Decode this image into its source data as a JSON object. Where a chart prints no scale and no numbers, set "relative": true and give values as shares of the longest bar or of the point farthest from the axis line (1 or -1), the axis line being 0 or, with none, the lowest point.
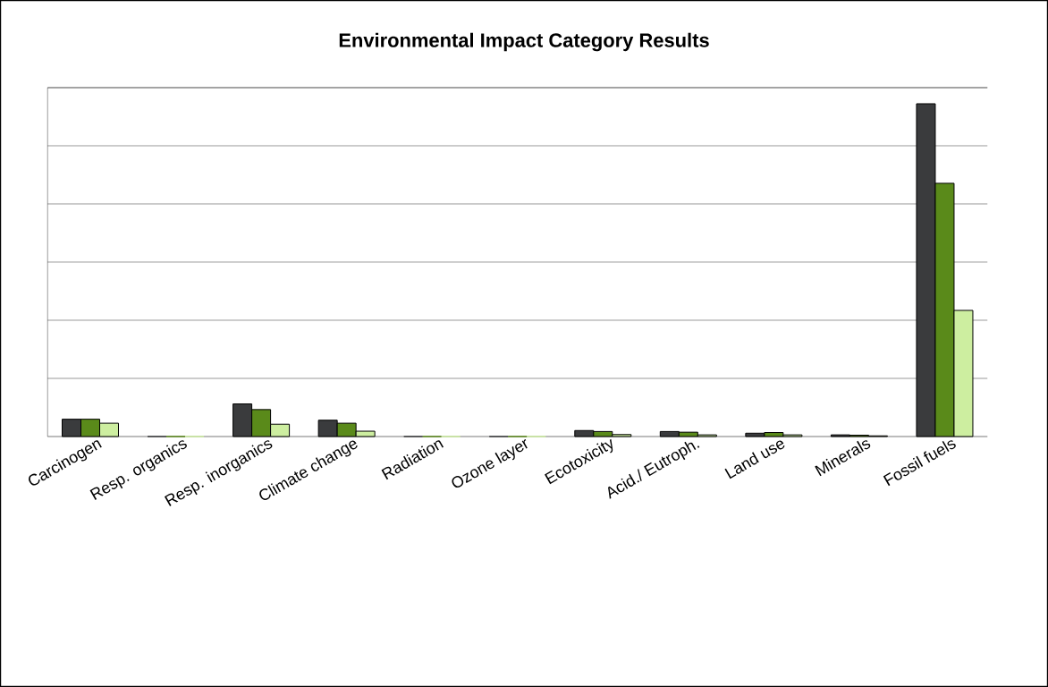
{
  "chart_data": {
    "type": "bar",
    "title": "Environmental Impact Category Results",
    "relative": true,
    "grid": "y",
    "categories": [
      "Carcinogen",
      "Resp. organics",
      "Resp. inorganics",
      "Climate change",
      "Radiation",
      "Ozone layer",
      "Ecotoxicity",
      "Acid./ Eutroph.",
      "Land use",
      "Minerals",
      "Fossil fuels"
    ],
    "series": [
      {
        "color": "#3a3b3d",
        "values": [
          0.052,
          0,
          0.098,
          0.049,
          0,
          0,
          0.018,
          0.015,
          0.01,
          0.005,
          1
        ]
      },
      {
        "color": "#5a8a1a",
        "values": [
          0.052,
          0,
          0.081,
          0.04,
          0,
          0,
          0.015,
          0.013,
          0.012,
          0.004,
          0.761
        ]
      },
      {
        "color": "#cdeea0",
        "values": [
          0.04,
          0,
          0.037,
          0.016,
          0,
          0,
          0.006,
          0.005,
          0.005,
          0.002,
          0.379
        ]
      }
    ]
  }
}
